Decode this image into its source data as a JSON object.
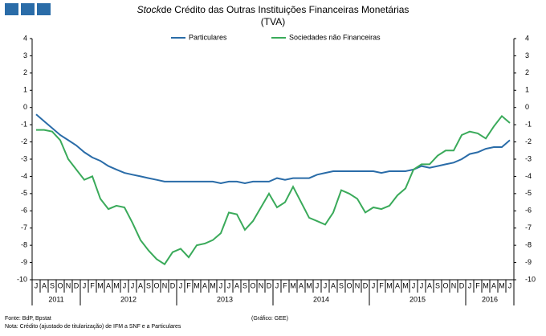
{
  "chart_data": {
    "type": "line",
    "title_italic": "Stock",
    "title": "de Crédito das Outras Instituições Financeiras Monetárias",
    "subtitle": "(TVA)",
    "source": "Fonte: BdP, Bpstat",
    "note": "Nota: Crédito (ajustado de titularização) de IFM a SNF e a Particulares",
    "credit": "(Gráfico: GEE)",
    "categories": [
      "J",
      "A",
      "S",
      "O",
      "N",
      "D",
      "J",
      "F",
      "M",
      "A",
      "M",
      "J",
      "J",
      "A",
      "S",
      "O",
      "N",
      "D",
      "J",
      "F",
      "M",
      "A",
      "M",
      "J",
      "J",
      "A",
      "S",
      "O",
      "N",
      "D",
      "J",
      "F",
      "M",
      "A",
      "M",
      "J",
      "J",
      "A",
      "S",
      "O",
      "N",
      "D",
      "J",
      "F",
      "M",
      "A",
      "M",
      "J",
      "J",
      "A",
      "S",
      "O",
      "N",
      "D",
      "J",
      "F",
      "M",
      "A",
      "M",
      "J"
    ],
    "years": [
      "2011",
      "2012",
      "2013",
      "2014",
      "2015",
      "2016"
    ],
    "series": [
      {
        "name": "Particulares",
        "color": "#2a6ca8",
        "values": [
          -0.4,
          -0.8,
          -1.2,
          -1.6,
          -1.9,
          -2.2,
          -2.6,
          -2.9,
          -3.1,
          -3.4,
          -3.6,
          -3.8,
          -3.9,
          -4.0,
          -4.1,
          -4.2,
          -4.3,
          -4.3,
          -4.3,
          -4.3,
          -4.3,
          -4.3,
          -4.3,
          -4.4,
          -4.3,
          -4.3,
          -4.4,
          -4.3,
          -4.3,
          -4.3,
          -4.1,
          -4.2,
          -4.1,
          -4.1,
          -4.1,
          -3.9,
          -3.8,
          -3.7,
          -3.7,
          -3.7,
          -3.7,
          -3.7,
          -3.7,
          -3.8,
          -3.7,
          -3.7,
          -3.7,
          -3.6,
          -3.4,
          -3.5,
          -3.4,
          -3.3,
          -3.2,
          -3.0,
          -2.7,
          -2.6,
          -2.4,
          -2.3,
          -2.3,
          -1.9
        ]
      },
      {
        "name": "Sociedades não Financeiras",
        "color": "#3aaa5a",
        "values": [
          -1.3,
          -1.3,
          -1.4,
          -1.9,
          -3.0,
          -3.6,
          -4.2,
          -4.0,
          -5.3,
          -5.9,
          -5.7,
          -5.8,
          -6.7,
          -7.7,
          -8.3,
          -8.8,
          -9.1,
          -8.4,
          -8.2,
          -8.7,
          -8.0,
          -7.9,
          -7.7,
          -7.3,
          -6.1,
          -6.2,
          -7.1,
          -6.6,
          -5.8,
          -5.0,
          -5.8,
          -5.5,
          -4.6,
          -5.5,
          -6.4,
          -6.6,
          -6.8,
          -6.1,
          -4.8,
          -5.0,
          -5.3,
          -6.1,
          -5.8,
          -5.9,
          -5.7,
          -5.1,
          -4.7,
          -3.6,
          -3.3,
          -3.3,
          -2.8,
          -2.5,
          -2.5,
          -1.6,
          -1.4,
          -1.5,
          -1.8,
          -1.1,
          -0.5,
          -0.9
        ]
      }
    ],
    "ylim": [
      -10,
      4
    ],
    "yticks": [
      -10,
      -9,
      -8,
      -7,
      -6,
      -5,
      -4,
      -3,
      -2,
      -1,
      0,
      1,
      2,
      3,
      4
    ],
    "y2lim": [
      -10,
      4
    ],
    "y2ticks": [
      -10,
      -9,
      -8,
      -7,
      -6,
      -5,
      -4,
      -3,
      -2,
      -1,
      0,
      1,
      2,
      3,
      4
    ],
    "grid": false,
    "legend": "top"
  }
}
